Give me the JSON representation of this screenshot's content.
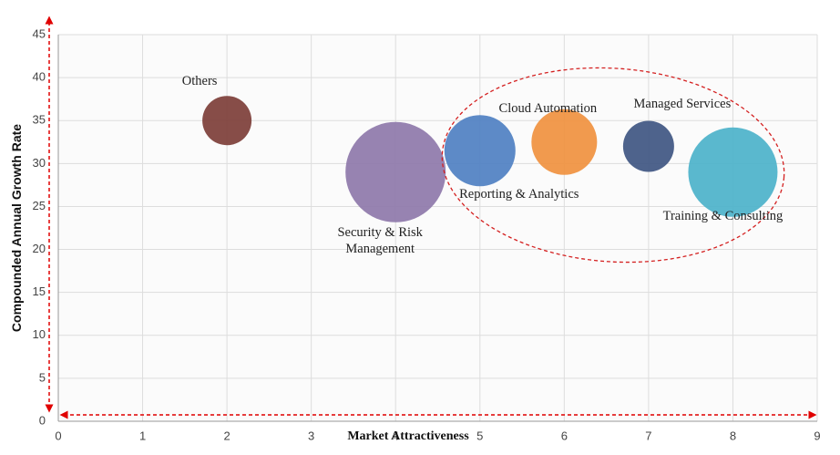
{
  "chart_data": {
    "type": "bubble",
    "x_label": "Market Attractiveness",
    "y_label": "Compounded Annual Growth Rate",
    "labels": [
      "Others",
      "Security & Risk Management",
      "Reporting & Analytics",
      "Cloud Automation",
      "Managed Services",
      "Training & Consulting"
    ],
    "x": [
      2,
      4,
      5,
      6,
      7,
      8
    ],
    "values": [
      35,
      29,
      31.5,
      32.5,
      32,
      29
    ],
    "sizes": [
      27,
      55,
      39,
      36,
      28,
      49
    ],
    "colors": [
      "#7d3e38",
      "#8e78aa",
      "#4f80c2",
      "#f0913f",
      "#3f5682",
      "#4cb2ca"
    ],
    "xlim": [
      0,
      9
    ],
    "ylim": [
      0,
      45
    ],
    "xticks": [
      0,
      1,
      2,
      3,
      4,
      5,
      6,
      7,
      8,
      9
    ],
    "yticks": [
      0,
      5,
      10,
      15,
      20,
      25,
      30,
      35,
      40,
      45
    ],
    "grid": true
  }
}
